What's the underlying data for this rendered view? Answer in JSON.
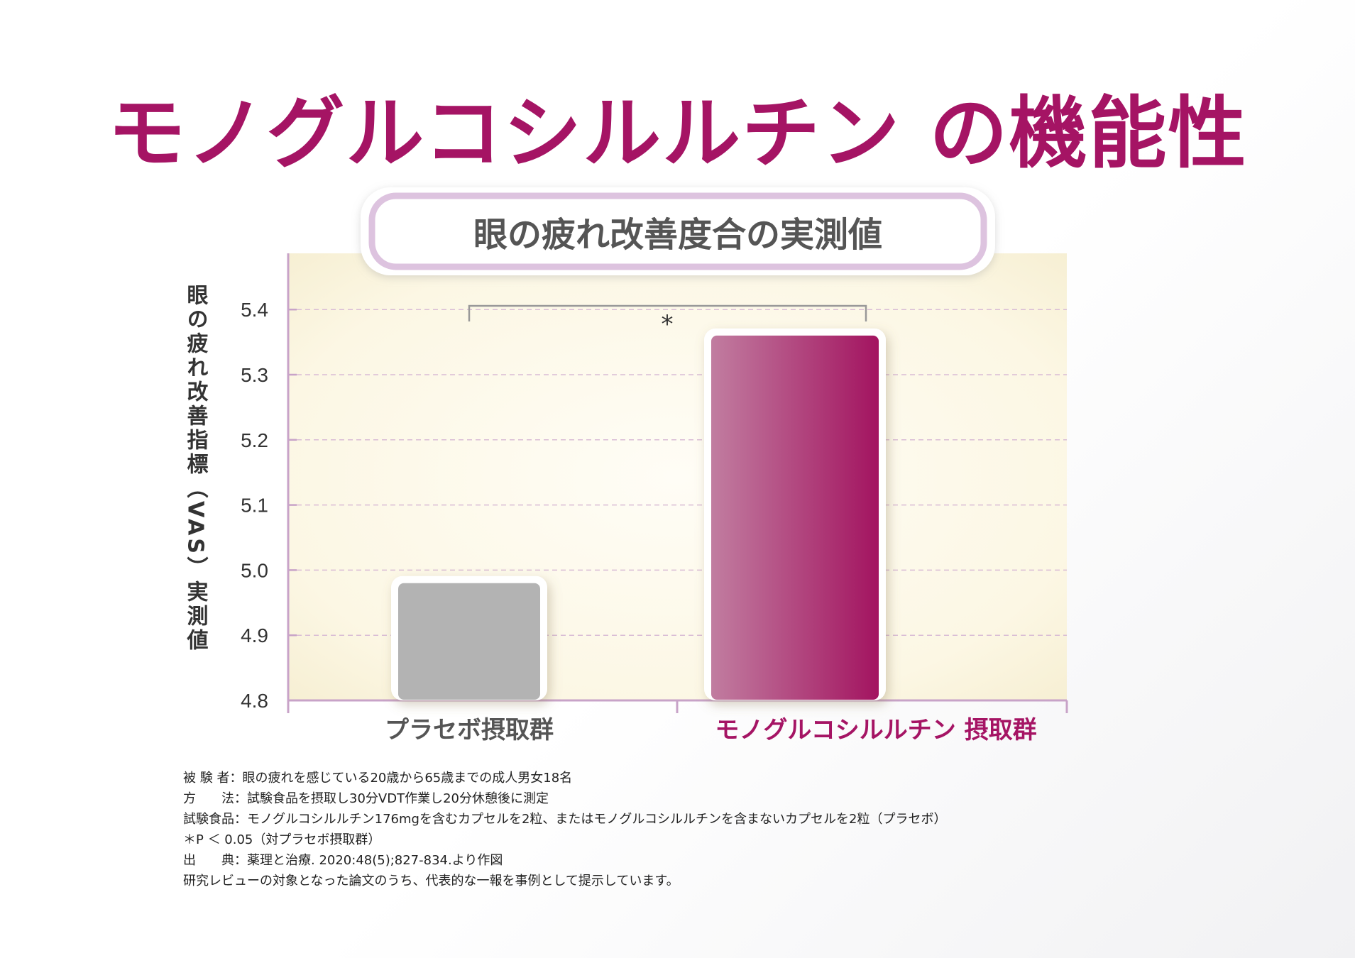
{
  "title": "モノグルコシルルチン の機能性",
  "colors": {
    "brand": "#a51464",
    "placebo_bar": "#b3b3b3",
    "treatment_bar_light": "#c17da0",
    "treatment_bar_dark": "#a31460",
    "plot_bg": "#fcf8e6",
    "grid": "#d9bcd5",
    "axis": "#c8a3c8"
  },
  "chart_data": {
    "type": "bar",
    "title": "眼の疲れ改善度合の実測値",
    "ylabel": "眼の疲れ改善指標（VAS）実測値",
    "xlabel": "",
    "categories": [
      "プラセボ摂取群",
      "モノグルコシルルチン 摂取群"
    ],
    "values": [
      4.98,
      5.36
    ],
    "ylim": [
      4.8,
      5.45
    ],
    "yticks": [
      "4.8",
      "4.9",
      "5.0",
      "5.1",
      "5.2",
      "5.3",
      "5.4"
    ],
    "grid": true,
    "significance": {
      "label": "*",
      "between": [
        0,
        1
      ]
    }
  },
  "footnotes": [
    "被 験 者：眼の疲れを感じている20歳から65歳までの成人男女18名",
    "方　　法：試験食品を摂取し30分VDT作業し20分休憩後に測定",
    "試験食品：モノグルコシルルチン176mgを含むカプセルを2粒、またはモノグルコシルルチンを含まないカプセルを2粒（プラセボ）",
    "＊P ＜ 0.05（対プラセボ摂取群）",
    "出　　典：薬理と治療. 2020:48(5);827-834.より作図",
    "研究レビューの対象となった論文のうち、代表的な一報を事例として提示しています。"
  ]
}
